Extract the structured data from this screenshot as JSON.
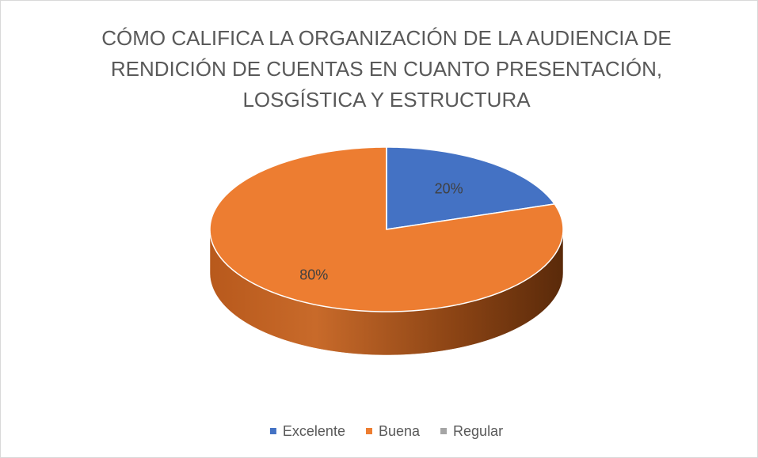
{
  "chart_data": {
    "type": "pie",
    "title": [
      "CÓMO CALIFICA LA ORGANIZACIÓN DE LA AUDIENCIA DE",
      "RENDICIÓN DE CUENTAS EN CUANTO  PRESENTACIÓN,",
      "LOSGÍSTICA Y ESTRUCTURA"
    ],
    "categories": [
      "Excelente",
      "Buena",
      "Regular"
    ],
    "values": [
      20,
      80,
      0
    ],
    "value_labels": [
      "20%",
      "80%",
      null
    ],
    "colors": [
      "#4472c4",
      "#ed7d31",
      "#a5a5a5"
    ],
    "legend": "bottom"
  }
}
